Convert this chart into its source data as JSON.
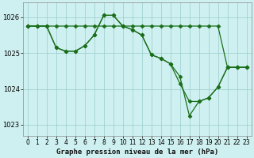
{
  "bg_color": "#cff0f0",
  "grid_color": "#99cccc",
  "line_color": "#1a6e1a",
  "xlabel": "Graphe pression niveau de la mer (hPa)",
  "ylim": [
    1022.7,
    1026.4
  ],
  "xlim": [
    -0.5,
    23.5
  ],
  "yticks": [
    1023,
    1024,
    1025,
    1026
  ],
  "xticks": [
    0,
    1,
    2,
    3,
    4,
    5,
    6,
    7,
    8,
    9,
    10,
    11,
    12,
    13,
    14,
    15,
    16,
    17,
    18,
    19,
    20,
    21,
    22,
    23
  ],
  "series": [
    {
      "x": [
        0,
        1,
        2,
        3,
        4,
        5,
        6,
        7,
        8,
        9,
        10,
        11,
        12,
        13,
        14,
        15,
        16,
        17,
        18,
        19,
        20,
        21,
        22,
        23
      ],
      "y": [
        1025.75,
        1025.75,
        1025.75,
        1025.75,
        1025.75,
        1025.75,
        1025.75,
        1025.75,
        1025.75,
        1025.75,
        1025.75,
        1025.75,
        1025.75,
        1025.75,
        1025.75,
        1025.75,
        1025.75,
        1025.75,
        1025.75,
        1025.75,
        1025.75,
        1024.6,
        1024.6,
        1024.6
      ]
    },
    {
      "x": [
        0,
        1,
        2,
        3,
        4,
        5,
        6,
        7,
        8,
        9,
        10,
        11,
        12,
        13,
        14,
        15,
        16,
        17,
        18,
        19,
        20,
        21,
        22,
        23
      ],
      "y": [
        1025.75,
        1025.75,
        1025.75,
        1025.15,
        1025.05,
        1025.05,
        1025.2,
        1025.5,
        1026.05,
        1026.05,
        1025.75,
        1025.65,
        1025.5,
        1024.95,
        1024.85,
        1024.7,
        1024.15,
        1023.65,
        1023.65,
        1023.75,
        1024.05,
        1024.6,
        1024.6,
        1024.6
      ]
    },
    {
      "x": [
        0,
        1,
        2,
        3,
        4,
        5,
        6,
        7,
        8,
        9,
        10,
        11,
        12,
        13,
        14,
        15,
        16,
        17,
        18,
        19,
        20,
        21,
        22,
        23
      ],
      "y": [
        1025.75,
        1025.75,
        1025.75,
        1025.15,
        1025.05,
        1025.05,
        1025.2,
        1025.5,
        1026.05,
        1026.05,
        1025.75,
        1025.65,
        1025.5,
        1024.95,
        1024.85,
        1024.7,
        1024.35,
        1023.25,
        1023.65,
        1023.75,
        1024.05,
        1024.6,
        1024.6,
        1024.6
      ]
    }
  ],
  "marker": "D",
  "markersize": 2.5,
  "linewidth": 0.9,
  "tick_fontsize": 5.5,
  "xlabel_fontsize": 6.5
}
